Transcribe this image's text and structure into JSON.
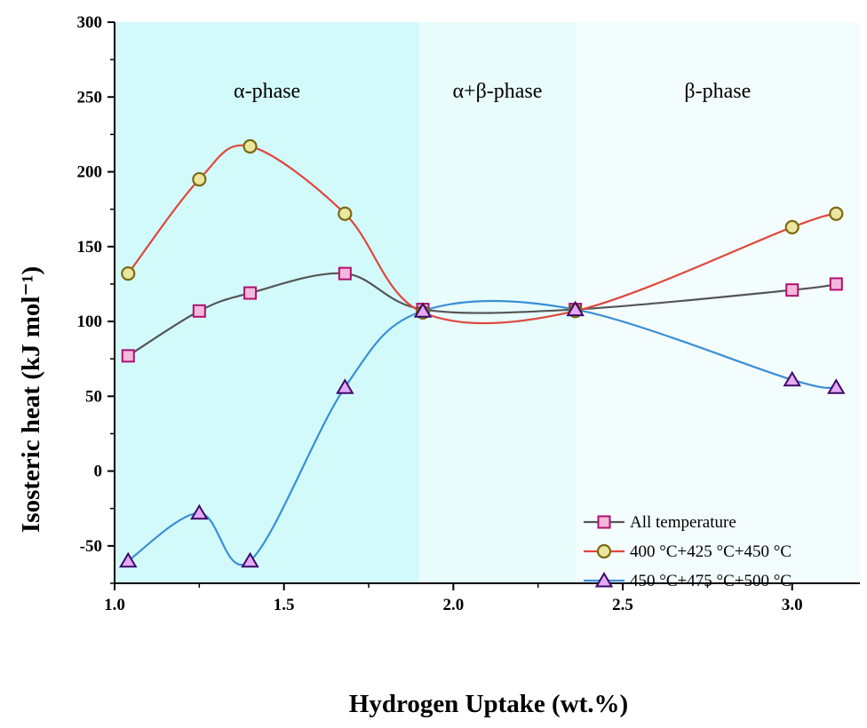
{
  "chart_data": {
    "type": "line",
    "xlabel": "Hydrogen Uptake (wt.%)",
    "ylabel": "Isosteric heat (kJ mol⁻¹)",
    "xlim": [
      1.0,
      3.2
    ],
    "ylim": [
      -75,
      300
    ],
    "x_ticks": [
      "1.0",
      "1.5",
      "2.0",
      "2.5",
      "3.0"
    ],
    "y_ticks": [
      "300",
      "250",
      "200",
      "150",
      "100",
      "50",
      "0",
      "-50"
    ],
    "grid": false,
    "legend_position": "bottom-right",
    "regions": [
      {
        "label": "α-phase",
        "x_range": [
          1.0,
          1.9
        ],
        "color": "#d3fafa"
      },
      {
        "label": "α+β-phase",
        "x_range": [
          1.9,
          2.36
        ],
        "color": "#e8fcfc"
      },
      {
        "label": "β-phase",
        "x_range": [
          2.36,
          3.2
        ],
        "color": "#f4fdfd"
      }
    ],
    "series": [
      {
        "name": "All temperature",
        "color": "#555555",
        "marker": "square",
        "marker_fill": "#f4b8dc",
        "marker_stroke": "#b0106e",
        "points": [
          [
            1.04,
            77
          ],
          [
            1.25,
            107
          ],
          [
            1.4,
            119
          ],
          [
            1.68,
            132
          ],
          [
            1.91,
            108
          ],
          [
            2.36,
            108
          ],
          [
            3.0,
            121
          ],
          [
            3.13,
            125
          ]
        ]
      },
      {
        "name": "400 °C+425 °C+450 °C",
        "color": "#e0473c",
        "marker": "circle",
        "marker_fill": "#e9e6a0",
        "marker_stroke": "#7a6a10",
        "points": [
          [
            1.04,
            132
          ],
          [
            1.25,
            195
          ],
          [
            1.4,
            217
          ],
          [
            1.68,
            172
          ],
          [
            1.91,
            106
          ],
          [
            2.36,
            107
          ],
          [
            3.0,
            163
          ],
          [
            3.13,
            172
          ]
        ]
      },
      {
        "name": "450 °C+475 °C+500 °C",
        "color": "#3a8fd6",
        "marker": "triangle",
        "marker_fill": "#e6a8f2",
        "marker_stroke": "#3a0a6a",
        "points": [
          [
            1.04,
            -60
          ],
          [
            1.25,
            -28
          ],
          [
            1.4,
            -60
          ],
          [
            1.68,
            56
          ],
          [
            1.91,
            107
          ],
          [
            2.36,
            108
          ],
          [
            3.0,
            61
          ],
          [
            3.13,
            56
          ]
        ]
      }
    ]
  }
}
